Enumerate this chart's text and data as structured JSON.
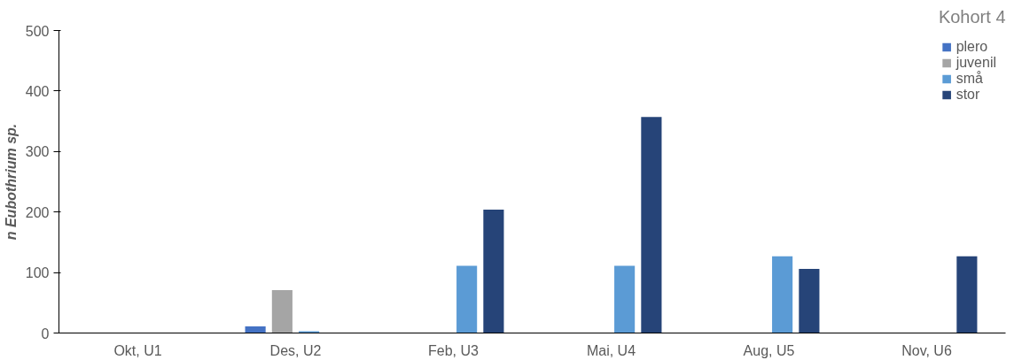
{
  "chart_data": {
    "type": "bar",
    "title": "Kohort 4",
    "ylabel": "n Eubothrium sp.",
    "categories": [
      "Okt, U1",
      "Des, U2",
      "Feb, U3",
      "Mai, U4",
      "Aug, U5",
      "Nov, U6"
    ],
    "series": [
      {
        "name": "plero",
        "color": "#4472c4",
        "values": [
          0,
          11,
          null,
          0,
          0,
          0
        ]
      },
      {
        "name": "juvenil",
        "color": "#a5a5a5",
        "values": [
          0,
          71,
          null,
          0,
          0,
          0
        ]
      },
      {
        "name": "små",
        "color": "#5b9bd5",
        "values": [
          0,
          3,
          111,
          111,
          127,
          0
        ]
      },
      {
        "name": "stor",
        "color": "#264478",
        "values": [
          0,
          null,
          204,
          357,
          106,
          127
        ]
      }
    ],
    "ylim": [
      0,
      500
    ],
    "yticks": [
      0,
      100,
      200,
      300,
      400,
      500
    ],
    "grid": false,
    "legend": "top right"
  }
}
